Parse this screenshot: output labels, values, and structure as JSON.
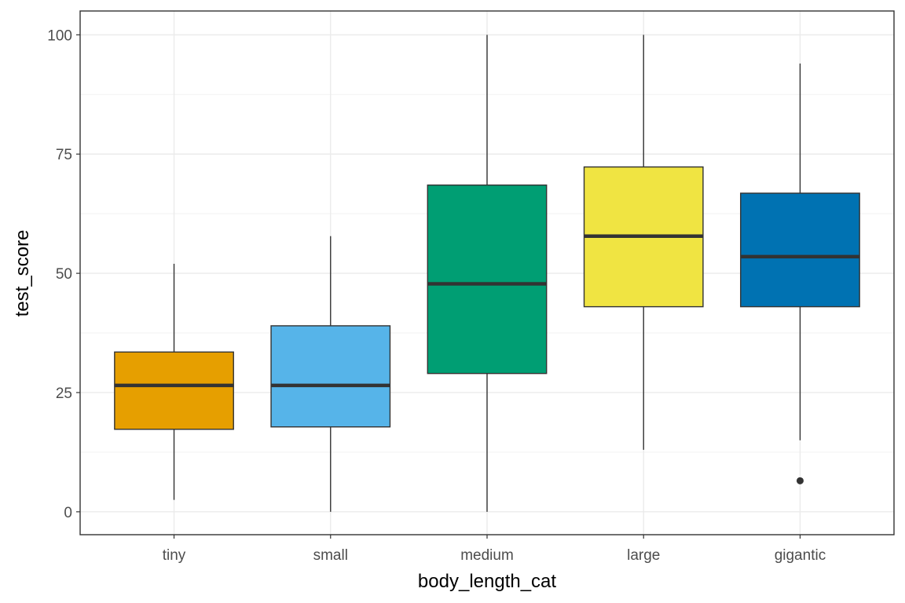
{
  "chart_data": {
    "type": "box",
    "xlabel": "body_length_cat",
    "ylabel": "test_score",
    "ylim": [
      -4.8,
      105
    ],
    "y_ticks": [
      0,
      25,
      50,
      75,
      100
    ],
    "grid": true,
    "categories": [
      "tiny",
      "small",
      "medium",
      "large",
      "gigantic"
    ],
    "boxes": [
      {
        "category": "tiny",
        "whisker_low": 2.5,
        "q1": 17.3,
        "median": 26.5,
        "q3": 33.5,
        "whisker_high": 52,
        "outliers": [],
        "color": "#E69F00"
      },
      {
        "category": "small",
        "whisker_low": 0,
        "q1": 17.8,
        "median": 26.5,
        "q3": 39,
        "whisker_high": 57.8,
        "outliers": [],
        "color": "#56B4E9"
      },
      {
        "category": "medium",
        "whisker_low": 0,
        "q1": 29,
        "median": 47.8,
        "q3": 68.5,
        "whisker_high": 100,
        "outliers": [],
        "color": "#009E73"
      },
      {
        "category": "large",
        "whisker_low": 13,
        "q1": 43,
        "median": 57.8,
        "q3": 72.3,
        "whisker_high": 100,
        "outliers": [],
        "color": "#F0E442"
      },
      {
        "category": "gigantic",
        "whisker_low": 15,
        "q1": 43,
        "median": 53.5,
        "q3": 66.8,
        "whisker_high": 94,
        "outliers": [
          6.5
        ],
        "color": "#0072B2"
      }
    ]
  }
}
